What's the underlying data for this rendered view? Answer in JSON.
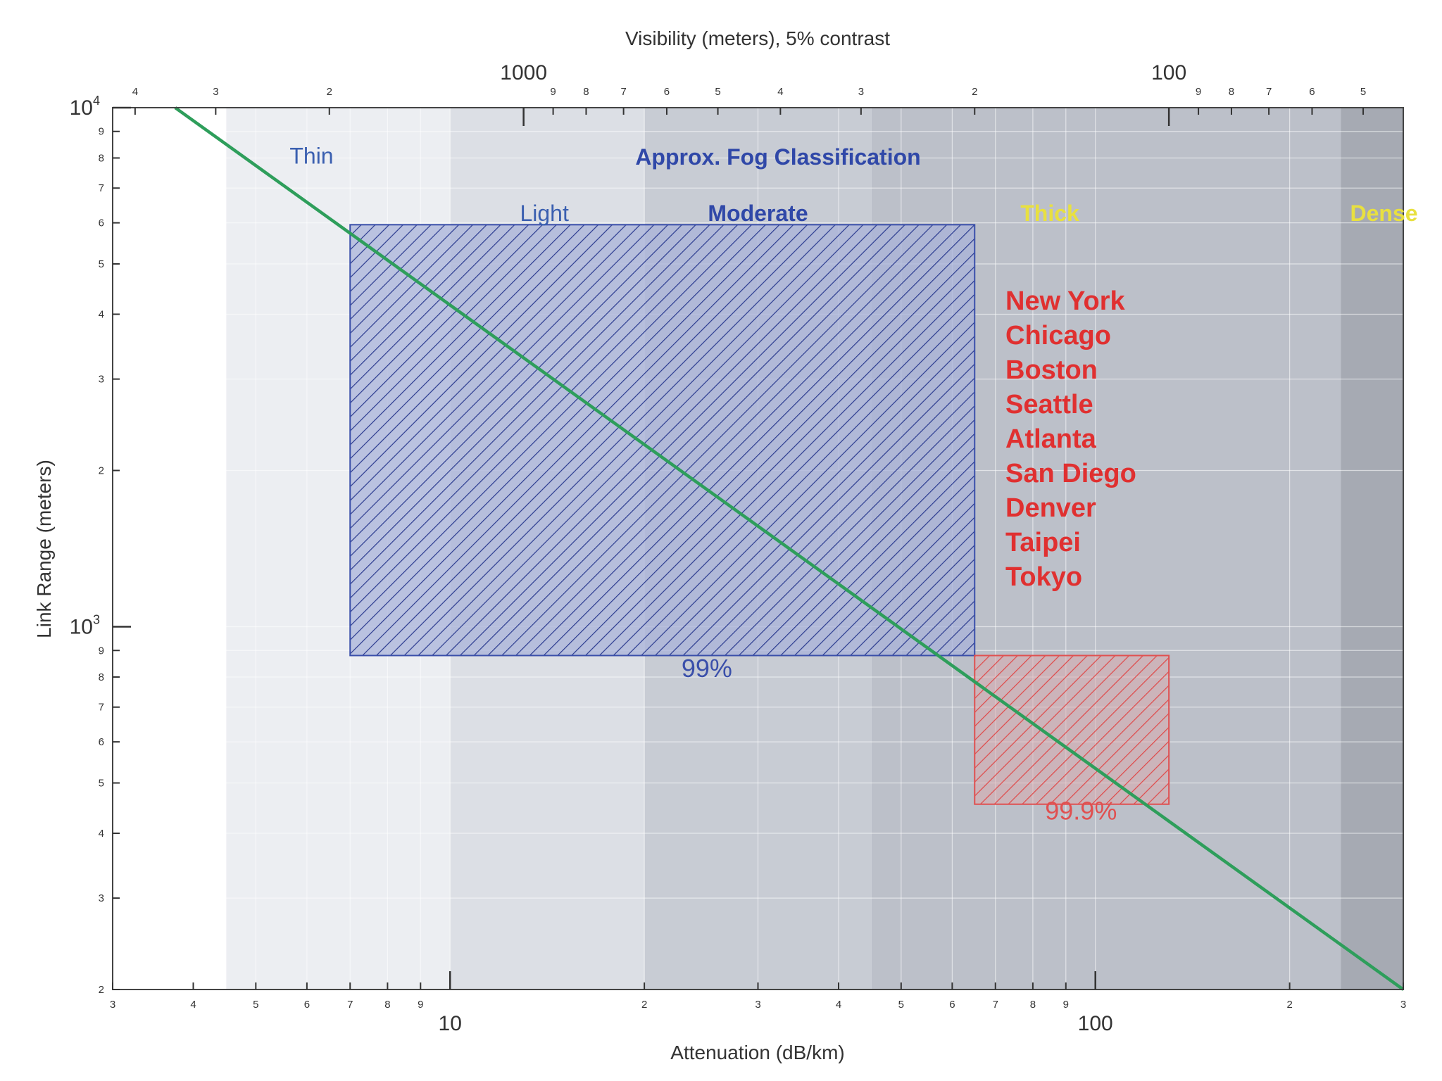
{
  "chart_data": {
    "type": "line",
    "x_axis": {
      "label": "Attenuation (dB/km)",
      "scale": "log",
      "range": [
        3,
        300
      ],
      "major_ticks": [
        {
          "value": 10,
          "label": "10"
        },
        {
          "value": 100,
          "label": "100"
        }
      ],
      "minor_ticks": [
        {
          "value": 3,
          "label": "3"
        },
        {
          "value": 4,
          "label": "4"
        },
        {
          "value": 5,
          "label": "5"
        },
        {
          "value": 6,
          "label": "6"
        },
        {
          "value": 7,
          "label": "7"
        },
        {
          "value": 8,
          "label": "8"
        },
        {
          "value": 9,
          "label": "9"
        },
        {
          "value": 20,
          "label": "2"
        },
        {
          "value": 30,
          "label": "3"
        },
        {
          "value": 40,
          "label": "4"
        },
        {
          "value": 50,
          "label": "5"
        },
        {
          "value": 60,
          "label": "6"
        },
        {
          "value": 70,
          "label": "7"
        },
        {
          "value": 80,
          "label": "8"
        },
        {
          "value": 90,
          "label": "9"
        },
        {
          "value": 200,
          "label": "2"
        },
        {
          "value": 300,
          "label": "3"
        }
      ]
    },
    "top_axis": {
      "label": "Visibility (meters), 5% contrast",
      "scale": "reciprocal",
      "major_ticks": [
        {
          "value": 1000,
          "label": "1000"
        },
        {
          "value": 100,
          "label": "100"
        }
      ],
      "minor_ticks": [
        {
          "value": 4000,
          "label": "4"
        },
        {
          "value": 3000,
          "label": "3"
        },
        {
          "value": 2000,
          "label": "2"
        },
        {
          "value": 900,
          "label": "9"
        },
        {
          "value": 800,
          "label": "8"
        },
        {
          "value": 700,
          "label": "7"
        },
        {
          "value": 600,
          "label": "6"
        },
        {
          "value": 500,
          "label": "5"
        },
        {
          "value": 400,
          "label": "4"
        },
        {
          "value": 300,
          "label": "3"
        },
        {
          "value": 200,
          "label": "2"
        },
        {
          "value": 90,
          "label": "9"
        },
        {
          "value": 80,
          "label": "8"
        },
        {
          "value": 70,
          "label": "7"
        },
        {
          "value": 60,
          "label": "6"
        },
        {
          "value": 50,
          "label": "5"
        }
      ]
    },
    "y_axis": {
      "label": "Link Range (meters)",
      "scale": "log",
      "range": [
        200,
        10000
      ],
      "major_ticks": [
        {
          "value": 1000,
          "base": "10",
          "exp": "3"
        },
        {
          "value": 10000,
          "base": "10",
          "exp": "4"
        }
      ],
      "minor_ticks": [
        {
          "value": 200,
          "label": "2"
        },
        {
          "value": 300,
          "label": "3"
        },
        {
          "value": 400,
          "label": "4"
        },
        {
          "value": 500,
          "label": "5"
        },
        {
          "value": 600,
          "label": "6"
        },
        {
          "value": 700,
          "label": "7"
        },
        {
          "value": 800,
          "label": "8"
        },
        {
          "value": 900,
          "label": "9"
        },
        {
          "value": 2000,
          "label": "2"
        },
        {
          "value": 3000,
          "label": "3"
        },
        {
          "value": 4000,
          "label": "4"
        },
        {
          "value": 5000,
          "label": "5"
        },
        {
          "value": 6000,
          "label": "6"
        },
        {
          "value": 7000,
          "label": "7"
        },
        {
          "value": 8000,
          "label": "8"
        },
        {
          "value": 9000,
          "label": "9"
        }
      ]
    },
    "grid": true,
    "series": [
      {
        "color": "#2e9e5b",
        "x": [
          3.75,
          300
        ],
        "y": [
          10000,
          200
        ]
      }
    ],
    "fog_bands": [
      {
        "x_range": [
          4.5,
          10
        ],
        "color": "#eceef2"
      },
      {
        "x_range": [
          10,
          20
        ],
        "color": "#dcdfe5"
      },
      {
        "x_range": [
          20,
          45
        ],
        "color": "#c8ccd4"
      },
      {
        "x_range": [
          45,
          240
        ],
        "color": "#bcc0c9"
      },
      {
        "x_range": [
          240,
          300
        ],
        "color": "#a6aab3"
      }
    ],
    "fog_classification": {
      "title": "Approx. Fog Classification",
      "labels": [
        {
          "text": "Thin",
          "x": 6.1,
          "y": 7800,
          "color": "#3a5fb0",
          "bold": false
        },
        {
          "text": "Light",
          "x": 14,
          "y": 6050,
          "color": "#3a5fb0",
          "bold": false
        },
        {
          "text": "Moderate",
          "x": 30,
          "y": 6050,
          "color": "#3048a8",
          "bold": true
        },
        {
          "text": "Thick",
          "x": 85,
          "y": 6050,
          "color": "#e8e040",
          "bold": true
        },
        {
          "text": "Dense",
          "x": 280,
          "y": 6050,
          "color": "#e8e040",
          "bold": true
        }
      ]
    },
    "regions": [
      {
        "label": "99%",
        "x_range": [
          7,
          65
        ],
        "y_range": [
          880,
          5950
        ],
        "color": "#3a4faa",
        "label_xy": [
          25,
          800
        ]
      },
      {
        "label": "99.9%",
        "x_range": [
          65,
          130
        ],
        "y_range": [
          455,
          880
        ],
        "color": "#e05050",
        "label_xy": [
          95,
          425
        ]
      }
    ],
    "annotations": {
      "cities": [
        "New York",
        "Chicago",
        "Boston",
        "Seattle",
        "Atlanta",
        "San Diego",
        "Denver",
        "Taipei",
        "Tokyo"
      ]
    }
  }
}
